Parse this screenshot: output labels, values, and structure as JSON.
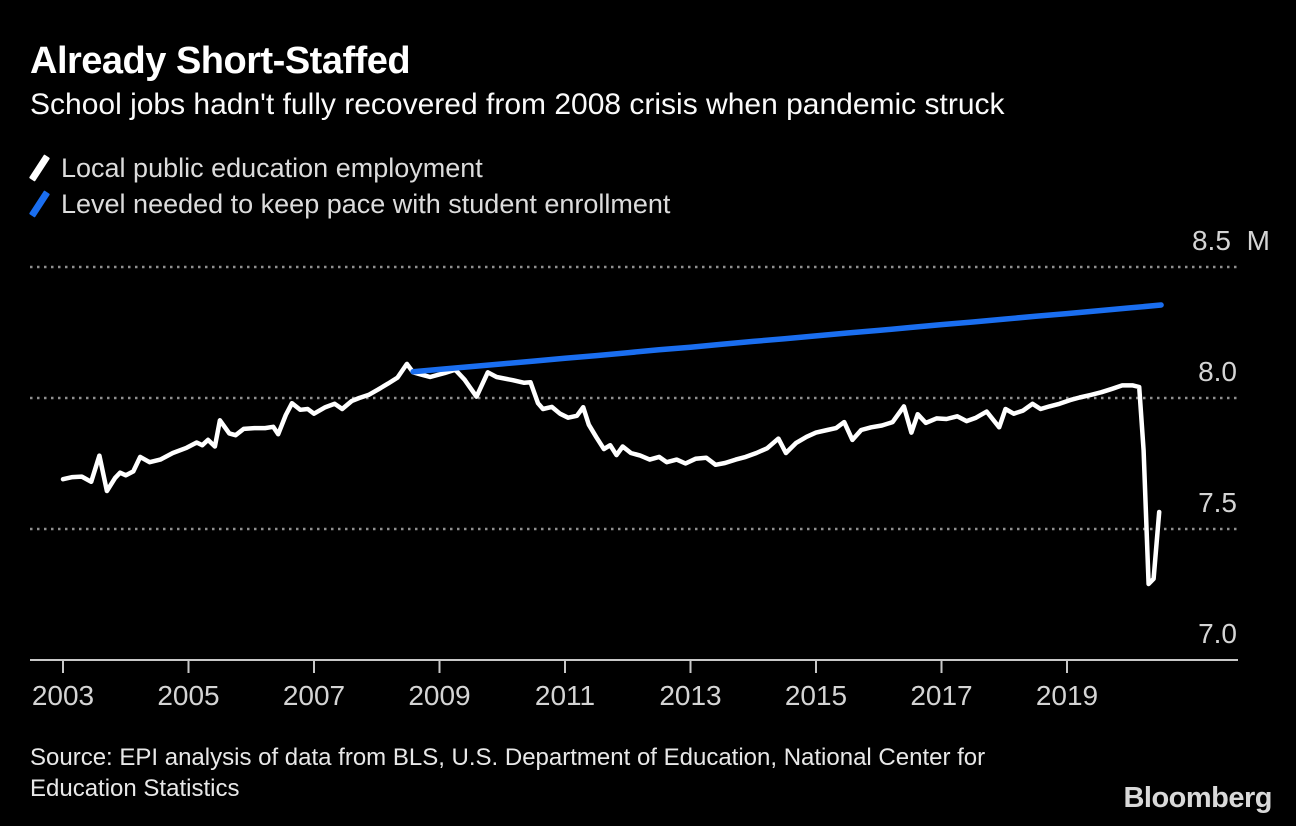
{
  "header": {
    "title": "Already Short-Staffed",
    "subtitle": "School jobs hadn't fully recovered from 2008 crisis when pandemic struck"
  },
  "legend": [
    {
      "label": "Local public education employment",
      "color": "#ffffff"
    },
    {
      "label": "Level needed to keep pace with student enrollment",
      "color": "#1a6ef0"
    }
  ],
  "chart_data": {
    "type": "line",
    "title": "Already Short-Staffed",
    "subtitle": "School jobs hadn't fully recovered from 2008 crisis when pandemic struck",
    "unit": "millions of jobs",
    "grid": "horizontal-dotted",
    "legend_position": "top-left",
    "x_axis": {
      "ticks": [
        2003,
        2005,
        2007,
        2009,
        2011,
        2013,
        2015,
        2017,
        2019
      ],
      "range": [
        2003,
        2021.7
      ]
    },
    "y_axis": {
      "side": "right",
      "baseline": 7.0,
      "range": [
        7.0,
        8.5
      ],
      "ticks": [
        {
          "value": 8.5,
          "label": "8.5 M"
        },
        {
          "value": 8.0,
          "label": "8.0"
        },
        {
          "value": 7.5,
          "label": "7.5"
        },
        {
          "value": 7.0,
          "label": "7.0"
        }
      ]
    },
    "series": [
      {
        "name": "Local public education employment",
        "color": "#ffffff",
        "width": 4.5,
        "points": [
          [
            2003.0,
            7.69
          ],
          [
            2003.15,
            7.698
          ],
          [
            2003.3,
            7.7
          ],
          [
            2003.45,
            7.68
          ],
          [
            2003.58,
            7.78
          ],
          [
            2003.7,
            7.645
          ],
          [
            2003.83,
            7.695
          ],
          [
            2003.91,
            7.715
          ],
          [
            2004.0,
            7.705
          ],
          [
            2004.12,
            7.72
          ],
          [
            2004.23,
            7.775
          ],
          [
            2004.38,
            7.755
          ],
          [
            2004.55,
            7.765
          ],
          [
            2004.75,
            7.79
          ],
          [
            2004.97,
            7.81
          ],
          [
            2005.13,
            7.83
          ],
          [
            2005.22,
            7.82
          ],
          [
            2005.31,
            7.84
          ],
          [
            2005.42,
            7.815
          ],
          [
            2005.5,
            7.915
          ],
          [
            2005.65,
            7.865
          ],
          [
            2005.75,
            7.858
          ],
          [
            2005.88,
            7.882
          ],
          [
            2006.05,
            7.885
          ],
          [
            2006.22,
            7.885
          ],
          [
            2006.35,
            7.89
          ],
          [
            2006.43,
            7.862
          ],
          [
            2006.55,
            7.935
          ],
          [
            2006.65,
            7.98
          ],
          [
            2006.78,
            7.955
          ],
          [
            2006.9,
            7.958
          ],
          [
            2007.0,
            7.94
          ],
          [
            2007.18,
            7.965
          ],
          [
            2007.33,
            7.978
          ],
          [
            2007.45,
            7.958
          ],
          [
            2007.6,
            7.988
          ],
          [
            2007.72,
            8.0
          ],
          [
            2007.87,
            8.012
          ],
          [
            2008.02,
            8.032
          ],
          [
            2008.18,
            8.055
          ],
          [
            2008.33,
            8.078
          ],
          [
            2008.48,
            8.13
          ],
          [
            2008.58,
            8.098
          ],
          [
            2008.7,
            8.09
          ],
          [
            2008.85,
            8.08
          ],
          [
            2009.08,
            8.095
          ],
          [
            2009.25,
            8.108
          ],
          [
            2009.4,
            8.07
          ],
          [
            2009.59,
            8.005
          ],
          [
            2009.77,
            8.098
          ],
          [
            2009.91,
            8.08
          ],
          [
            2010.17,
            8.068
          ],
          [
            2010.35,
            8.058
          ],
          [
            2010.45,
            8.06
          ],
          [
            2010.57,
            7.98
          ],
          [
            2010.65,
            7.958
          ],
          [
            2010.79,
            7.966
          ],
          [
            2010.92,
            7.94
          ],
          [
            2011.05,
            7.925
          ],
          [
            2011.19,
            7.932
          ],
          [
            2011.29,
            7.965
          ],
          [
            2011.38,
            7.898
          ],
          [
            2011.5,
            7.85
          ],
          [
            2011.62,
            7.805
          ],
          [
            2011.72,
            7.82
          ],
          [
            2011.82,
            7.782
          ],
          [
            2011.92,
            7.815
          ],
          [
            2012.05,
            7.79
          ],
          [
            2012.2,
            7.78
          ],
          [
            2012.35,
            7.765
          ],
          [
            2012.5,
            7.775
          ],
          [
            2012.62,
            7.755
          ],
          [
            2012.78,
            7.765
          ],
          [
            2012.92,
            7.75
          ],
          [
            2013.08,
            7.768
          ],
          [
            2013.25,
            7.772
          ],
          [
            2013.4,
            7.745
          ],
          [
            2013.55,
            7.752
          ],
          [
            2013.72,
            7.765
          ],
          [
            2013.88,
            7.775
          ],
          [
            2014.05,
            7.79
          ],
          [
            2014.22,
            7.808
          ],
          [
            2014.4,
            7.845
          ],
          [
            2014.52,
            7.79
          ],
          [
            2014.68,
            7.828
          ],
          [
            2014.85,
            7.852
          ],
          [
            2015.0,
            7.868
          ],
          [
            2015.18,
            7.878
          ],
          [
            2015.32,
            7.885
          ],
          [
            2015.45,
            7.908
          ],
          [
            2015.58,
            7.84
          ],
          [
            2015.72,
            7.878
          ],
          [
            2015.88,
            7.888
          ],
          [
            2016.05,
            7.895
          ],
          [
            2016.22,
            7.908
          ],
          [
            2016.4,
            7.968
          ],
          [
            2016.52,
            7.868
          ],
          [
            2016.62,
            7.938
          ],
          [
            2016.75,
            7.905
          ],
          [
            2016.92,
            7.922
          ],
          [
            2017.08,
            7.92
          ],
          [
            2017.25,
            7.93
          ],
          [
            2017.4,
            7.912
          ],
          [
            2017.55,
            7.925
          ],
          [
            2017.72,
            7.948
          ],
          [
            2017.92,
            7.888
          ],
          [
            2018.02,
            7.958
          ],
          [
            2018.15,
            7.94
          ],
          [
            2018.3,
            7.952
          ],
          [
            2018.45,
            7.978
          ],
          [
            2018.58,
            7.958
          ],
          [
            2018.72,
            7.968
          ],
          [
            2018.88,
            7.978
          ],
          [
            2019.05,
            7.992
          ],
          [
            2019.2,
            8.002
          ],
          [
            2019.38,
            8.012
          ],
          [
            2019.55,
            8.022
          ],
          [
            2019.72,
            8.035
          ],
          [
            2019.88,
            8.048
          ],
          [
            2020.05,
            8.048
          ],
          [
            2020.15,
            8.042
          ],
          [
            2020.22,
            7.8
          ],
          [
            2020.3,
            7.29
          ],
          [
            2020.38,
            7.31
          ],
          [
            2020.47,
            7.565
          ]
        ]
      },
      {
        "name": "Level needed to keep pace with student enrollment",
        "color": "#1a6ef0",
        "width": 5.5,
        "points": [
          [
            2008.58,
            8.1
          ],
          [
            2009.0,
            8.109
          ],
          [
            2009.5,
            8.12
          ],
          [
            2010.0,
            8.13
          ],
          [
            2010.5,
            8.141
          ],
          [
            2011.0,
            8.152
          ],
          [
            2011.5,
            8.162
          ],
          [
            2012.0,
            8.173
          ],
          [
            2012.5,
            8.184
          ],
          [
            2013.0,
            8.194
          ],
          [
            2013.5,
            8.205
          ],
          [
            2014.0,
            8.216
          ],
          [
            2014.5,
            8.226
          ],
          [
            2015.0,
            8.237
          ],
          [
            2015.5,
            8.248
          ],
          [
            2016.0,
            8.258
          ],
          [
            2016.5,
            8.269
          ],
          [
            2017.0,
            8.28
          ],
          [
            2017.5,
            8.29
          ],
          [
            2018.0,
            8.301
          ],
          [
            2018.5,
            8.312
          ],
          [
            2019.0,
            8.322
          ],
          [
            2019.5,
            8.333
          ],
          [
            2020.0,
            8.344
          ],
          [
            2020.5,
            8.355
          ]
        ]
      }
    ]
  },
  "footer": {
    "source": "Source: EPI analysis of data from BLS, U.S. Department of Education, National Center for Education Statistics",
    "brand": "Bloomberg"
  },
  "colors": {
    "background": "#000000",
    "axis": "#c8c8c8",
    "grid_dots": "#8f8f8f",
    "tick_labels": "#d4d4d4",
    "legend_text": "#dcdcdc",
    "employment_line": "#ffffff",
    "needed_line": "#1a6ef0"
  }
}
